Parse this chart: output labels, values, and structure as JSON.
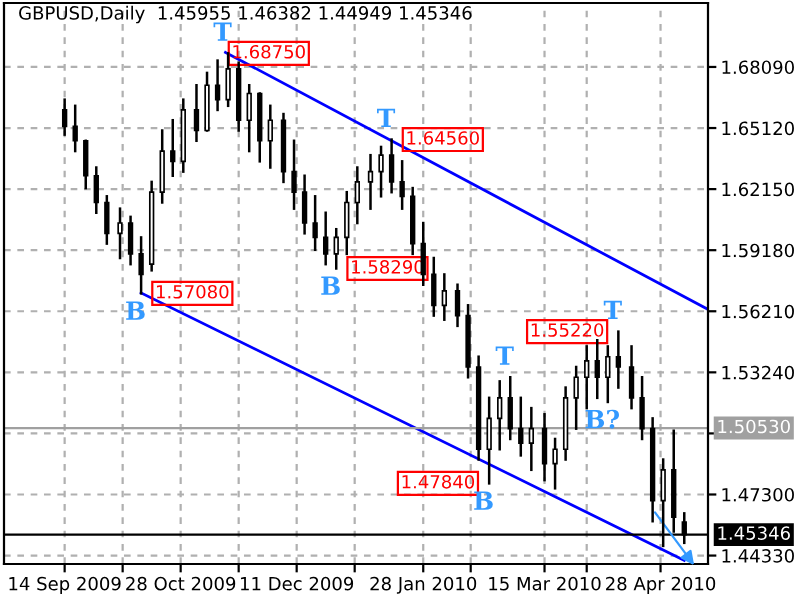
{
  "chart_data": {
    "type": "candlestick",
    "title": "GBPUSD,Daily  1.45955 1.46382 1.44949 1.45346",
    "x": [
      "2009-09-14",
      "2009-09-18",
      "2009-09-22",
      "2009-09-26",
      "2009-09-30",
      "2009-10-05",
      "2009-10-09",
      "2009-10-13",
      "2009-10-17",
      "2009-10-21",
      "2009-10-25",
      "2009-10-29",
      "2009-11-03",
      "2009-11-07",
      "2009-11-11",
      "2009-11-15",
      "2009-11-19",
      "2009-11-23",
      "2009-11-27",
      "2009-12-01",
      "2009-12-06",
      "2009-12-10",
      "2009-12-14",
      "2009-12-18",
      "2009-12-22",
      "2009-12-26",
      "2009-12-30",
      "2010-01-03",
      "2010-01-08",
      "2010-01-12",
      "2010-01-16",
      "2010-01-20",
      "2010-01-24",
      "2010-01-28",
      "2010-02-01",
      "2010-02-05",
      "2010-02-10",
      "2010-02-14",
      "2010-02-18",
      "2010-02-22",
      "2010-02-26",
      "2010-03-02",
      "2010-03-06",
      "2010-03-10",
      "2010-03-15",
      "2010-03-19",
      "2010-03-23",
      "2010-03-27",
      "2010-03-31",
      "2010-04-04",
      "2010-04-08",
      "2010-04-12",
      "2010-04-17",
      "2010-04-21",
      "2010-04-25",
      "2010-04-29",
      "2010-05-03",
      "2010-05-07"
    ],
    "ohlc": [
      [
        1.66,
        1.665,
        1.648,
        1.652
      ],
      [
        1.652,
        1.662,
        1.64,
        1.645
      ],
      [
        1.645,
        1.645,
        1.622,
        1.628
      ],
      [
        1.628,
        1.632,
        1.61,
        1.615
      ],
      [
        1.615,
        1.618,
        1.595,
        1.6
      ],
      [
        1.6,
        1.612,
        1.588,
        1.605
      ],
      [
        1.605,
        1.608,
        1.585,
        1.59
      ],
      [
        1.59,
        1.598,
        1.5708,
        1.58
      ],
      [
        1.585,
        1.625,
        1.582,
        1.62
      ],
      [
        1.62,
        1.65,
        1.615,
        1.64
      ],
      [
        1.64,
        1.655,
        1.628,
        1.635
      ],
      [
        1.635,
        1.665,
        1.63,
        1.66
      ],
      [
        1.66,
        1.672,
        1.645,
        1.65
      ],
      [
        1.65,
        1.678,
        1.65,
        1.672
      ],
      [
        1.672,
        1.684,
        1.66,
        1.665
      ],
      [
        1.665,
        1.6875,
        1.662,
        1.68
      ],
      [
        1.68,
        1.683,
        1.65,
        1.655
      ],
      [
        1.655,
        1.672,
        1.64,
        1.668
      ],
      [
        1.668,
        1.668,
        1.635,
        1.645
      ],
      [
        1.645,
        1.662,
        1.632,
        1.655
      ],
      [
        1.655,
        1.658,
        1.625,
        1.63
      ],
      [
        1.63,
        1.645,
        1.612,
        1.62
      ],
      [
        1.62,
        1.628,
        1.6,
        1.605
      ],
      [
        1.605,
        1.618,
        1.592,
        1.598
      ],
      [
        1.598,
        1.61,
        1.585,
        1.59
      ],
      [
        1.59,
        1.602,
        1.5829,
        1.598
      ],
      [
        1.598,
        1.62,
        1.59,
        1.615
      ],
      [
        1.615,
        1.632,
        1.605,
        1.625
      ],
      [
        1.625,
        1.638,
        1.612,
        1.63
      ],
      [
        1.63,
        1.642,
        1.618,
        1.638
      ],
      [
        1.638,
        1.6456,
        1.62,
        1.625
      ],
      [
        1.625,
        1.635,
        1.612,
        1.618
      ],
      [
        1.618,
        1.622,
        1.59,
        1.595
      ],
      [
        1.595,
        1.605,
        1.575,
        1.58
      ],
      [
        1.58,
        1.588,
        1.56,
        1.565
      ],
      [
        1.565,
        1.58,
        1.558,
        1.572
      ],
      [
        1.572,
        1.575,
        1.555,
        1.56
      ],
      [
        1.56,
        1.565,
        1.53,
        1.535
      ],
      [
        1.535,
        1.54,
        1.49,
        1.495
      ],
      [
        1.495,
        1.52,
        1.4784,
        1.51
      ],
      [
        1.51,
        1.528,
        1.495,
        1.52
      ],
      [
        1.52,
        1.53,
        1.5,
        1.505
      ],
      [
        1.505,
        1.52,
        1.492,
        1.498
      ],
      [
        1.498,
        1.515,
        1.485,
        1.505
      ],
      [
        1.505,
        1.512,
        1.48,
        1.488
      ],
      [
        1.488,
        1.5,
        1.476,
        1.495
      ],
      [
        1.495,
        1.525,
        1.49,
        1.52
      ],
      [
        1.52,
        1.535,
        1.505,
        1.53
      ],
      [
        1.53,
        1.545,
        1.515,
        1.538
      ],
      [
        1.538,
        1.548,
        1.52,
        1.53
      ],
      [
        1.53,
        1.545,
        1.518,
        1.54
      ],
      [
        1.54,
        1.5522,
        1.525,
        1.535
      ],
      [
        1.535,
        1.545,
        1.515,
        1.52
      ],
      [
        1.52,
        1.53,
        1.5,
        1.505
      ],
      [
        1.505,
        1.51,
        1.46,
        1.47
      ],
      [
        1.47,
        1.49,
        1.448,
        1.485
      ],
      [
        1.485,
        1.504,
        1.455,
        1.462
      ],
      [
        1.45955,
        1.46382,
        1.44949,
        1.45346
      ]
    ],
    "color": "#000000",
    "series": [
      {
        "type": "line",
        "color": "#0000ff",
        "x": [
          "2009-11-14",
          "2010-05-16"
        ],
        "values": [
          1.688,
          1.563
        ]
      },
      {
        "type": "line",
        "color": "#0000ff",
        "x": [
          "2009-10-13",
          "2010-05-07"
        ],
        "values": [
          1.571,
          1.441
        ]
      }
    ],
    "xlim": [
      "2009-08-22",
      "2010-05-16"
    ],
    "ylim": [
      1.4392,
      1.712
    ],
    "xticks": [
      {
        "value": "2009-09-14",
        "label": "14 Sep 2009"
      },
      {
        "value": "2009-10-06",
        "label": null
      },
      {
        "value": "2009-10-28",
        "label": "28 Oct 2009"
      },
      {
        "value": "2009-11-19",
        "label": null
      },
      {
        "value": "2009-12-11",
        "label": "11 Dec 2009"
      },
      {
        "value": "2010-01-02",
        "label": null
      },
      {
        "value": "2010-01-28",
        "label": "28 Jan 2010"
      },
      {
        "value": "2010-02-15",
        "label": null
      },
      {
        "value": "2010-03-15",
        "label": "15 Mar 2010"
      },
      {
        "value": "2010-03-31",
        "label": null
      },
      {
        "value": "2010-04-28",
        "label": "28 Apr 2010"
      }
    ],
    "yticks": [
      {
        "value": 1.6809,
        "label": "1.68090"
      },
      {
        "value": 1.6512,
        "label": "1.65120"
      },
      {
        "value": 1.6215,
        "label": "1.62150"
      },
      {
        "value": 1.5918,
        "label": "1.59180"
      },
      {
        "value": 1.5621,
        "label": "1.56210"
      },
      {
        "value": 1.5324,
        "label": "1.53240"
      },
      {
        "value": 1.5027,
        "label": null
      },
      {
        "value": 1.473,
        "label": "1.47300"
      },
      {
        "value": 1.4433,
        "label": "1.44330"
      }
    ],
    "ref_lines": [
      {
        "axis": "y",
        "value": 1.5053,
        "label": "1.50530",
        "color": "#a0a0a0"
      },
      {
        "axis": "y",
        "value": 1.45346,
        "label": "1.45346",
        "color": "#000000"
      }
    ],
    "annotations": [
      {
        "text": "1.68750",
        "x": "2009-11-11",
        "y": 1.6875
      },
      {
        "text": "1.64560",
        "x": "2010-01-16",
        "y": 1.6456
      },
      {
        "text": "1.58290",
        "x": "2009-12-26",
        "y": 1.5829
      },
      {
        "text": "1.57080",
        "x": "2009-10-13",
        "y": 1.5708
      },
      {
        "text": "1.47840",
        "x": "2010-02-22",
        "y": 1.4784
      },
      {
        "text": "1.55220",
        "x": "2010-04-12",
        "y": 1.5522
      },
      {
        "text": "T",
        "x": "2009-11-15",
        "y": 1.6875
      },
      {
        "text": "T",
        "x": "2010-01-16",
        "y": 1.6456
      },
      {
        "text": "B",
        "x": "2009-12-26",
        "y": 1.5829
      },
      {
        "text": "B",
        "x": "2009-10-13",
        "y": 1.5708
      },
      {
        "text": "T",
        "x": "2010-03-02",
        "y": 1.53
      },
      {
        "text": "B",
        "x": "2010-02-22",
        "y": 1.4784
      },
      {
        "text": "T",
        "x": "2010-04-12",
        "y": 1.5522
      },
      {
        "text": "B?",
        "x": "2010-04-08",
        "y": 1.518
      }
    ],
    "grid": true
  }
}
